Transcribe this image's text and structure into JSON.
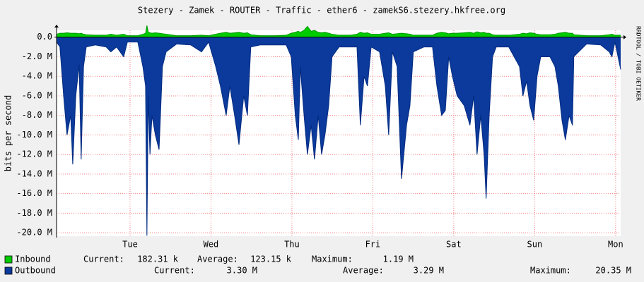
{
  "chart_data": {
    "type": "area",
    "title": "Stezery - Zamek - ROUTER - Traffic - ether6 - zamekS6.stezery.hkfree.org",
    "y_label": "bits per second",
    "watermark": "RRDTOOL / TOBI OETIKER",
    "x": [
      2.2,
      3.2,
      4.3,
      5.3,
      6.4,
      7.0,
      7.9,
      8.9,
      9.5,
      10.2,
      11.0,
      13.7,
      16.9,
      18.3,
      20.0,
      22.1,
      23.2,
      26.3,
      27.8,
      28.6,
      29.0,
      29.4,
      29.9,
      30.5,
      31.5,
      32.6,
      33.6,
      34.7,
      37.8,
      42.0,
      45.2,
      47.3,
      49.4,
      50.8,
      52.5,
      53.6,
      55.0,
      56.3,
      57.7,
      58.8,
      59.8,
      62.6,
      67.2,
      70.3,
      71.8,
      73.0,
      73.9,
      74.5,
      75.6,
      76.6,
      77.7,
      78.7,
      79.8,
      80.8,
      81.8,
      82.9,
      83.9,
      86.0,
      89.2,
      91.3,
      92.3,
      93.4,
      94.4,
      95.5,
      98.0,
      99.7,
      100.7,
      101.8,
      103.2,
      104.5,
      106.0,
      107.0,
      108.0,
      111.2,
      113.7,
      115.0,
      116.4,
      117.5,
      118.5,
      119.6,
      121.0,
      123.1,
      124.8,
      125.9,
      126.9,
      128.0,
      129.0,
      129.6,
      130.5,
      131.5,
      132.6,
      136.3,
      139.5,
      140.5,
      141.6,
      142.6,
      143.7,
      144.7,
      145.8,
      148.5,
      150.0,
      151.0,
      152.1,
      153.1,
      154.2,
      155.2,
      155.6,
      159.4,
      163.6,
      166.1,
      166.9,
      167.8,
      169.5
    ],
    "series": [
      {
        "name": "Inbound",
        "color": "#00cc00",
        "outline": "#009900",
        "stats": [
          "Current:",
          "182.31 k",
          "Average:",
          "123.15 k",
          "Maximum:",
          "1.19 M"
        ],
        "values": [
          300000,
          400000,
          400000,
          450000,
          400000,
          400000,
          400000,
          350000,
          400000,
          300000,
          250000,
          200000,
          200000,
          300000,
          200000,
          300000,
          150000,
          150000,
          300000,
          400000,
          1190000,
          500000,
          450000,
          400000,
          450000,
          400000,
          350000,
          300000,
          150000,
          150000,
          200000,
          150000,
          300000,
          400000,
          500000,
          400000,
          450000,
          500000,
          400000,
          450000,
          250000,
          150000,
          150000,
          200000,
          400000,
          500000,
          600000,
          500000,
          700000,
          1100000,
          600000,
          700000,
          500000,
          450000,
          500000,
          400000,
          300000,
          200000,
          200000,
          300000,
          500000,
          400000,
          450000,
          300000,
          300000,
          400000,
          450000,
          300000,
          350000,
          400000,
          350000,
          300000,
          200000,
          200000,
          200000,
          400000,
          500000,
          450000,
          350000,
          400000,
          400000,
          450000,
          500000,
          400000,
          550000,
          450000,
          500000,
          400000,
          400000,
          250000,
          200000,
          200000,
          300000,
          400000,
          350000,
          450000,
          400000,
          300000,
          250000,
          250000,
          300000,
          400000,
          450000,
          500000,
          400000,
          400000,
          250000,
          150000,
          150000,
          250000,
          300000,
          200000,
          200000
        ]
      },
      {
        "name": "Outbound",
        "color": "#0b3a9c",
        "outline": "#002a80",
        "stats": [
          "Current:",
          "3.30 M",
          "Average:",
          "3.29 M",
          "Maximum:",
          "20.35 M"
        ],
        "values": [
          -500000,
          -1000000,
          -6000000,
          -10000000,
          -8000000,
          -13000000,
          -6000000,
          -2800000,
          -12500000,
          -3000000,
          -1000000,
          -800000,
          -1000000,
          -1500000,
          -1000000,
          -2000000,
          -500000,
          -500000,
          -3000000,
          -5000000,
          -20300000,
          -6000000,
          -12000000,
          -8000000,
          -10000000,
          -11500000,
          -3000000,
          -1500000,
          -700000,
          -800000,
          -1500000,
          -500000,
          -3000000,
          -5000000,
          -8000000,
          -5000000,
          -8000000,
          -11000000,
          -6000000,
          -8000000,
          -1000000,
          -800000,
          -800000,
          -800000,
          -2000000,
          -8000000,
          -10500000,
          -3000000,
          -8000000,
          -12000000,
          -9000000,
          -12500000,
          -8000000,
          -12000000,
          -10000000,
          -7000000,
          -2000000,
          -1000000,
          -1000000,
          -1000000,
          -9000000,
          -4000000,
          -5000000,
          -1000000,
          -1500000,
          -5000000,
          -10000000,
          -1500000,
          -3000000,
          -14500000,
          -9000000,
          -7000000,
          -1500000,
          -1000000,
          -1000000,
          -5000000,
          -8000000,
          -7500000,
          -2000000,
          -4000000,
          -6000000,
          -7000000,
          -9000000,
          -6000000,
          -12000000,
          -8000000,
          -12000000,
          -16500000,
          -8000000,
          -2000000,
          -1000000,
          -1000000,
          -3000000,
          -6000000,
          -4500000,
          -7000000,
          -8500000,
          -4000000,
          -2000000,
          -2000000,
          -3000000,
          -5000000,
          -8500000,
          -10500000,
          -8000000,
          -9000000,
          -2000000,
          -700000,
          -800000,
          -1500000,
          -2000000,
          -500000,
          -3300000
        ]
      }
    ],
    "xlim": [
      2.2,
      169.5
    ],
    "xticks": [
      {
        "value": 24,
        "label": "Tue"
      },
      {
        "value": 48,
        "label": "Wed"
      },
      {
        "value": 72,
        "label": "Thu"
      },
      {
        "value": 96,
        "label": "Fri"
      },
      {
        "value": 120,
        "label": "Sat"
      },
      {
        "value": 144,
        "label": "Sun"
      },
      {
        "value": 168,
        "label": "Mon"
      }
    ],
    "ylim": [
      -20350000,
      700000
    ],
    "yticks": [
      {
        "value": 0,
        "label": "0.0"
      },
      {
        "value": -2000000,
        "label": "-2.0 M"
      },
      {
        "value": -4000000,
        "label": "-4.0 M"
      },
      {
        "value": -6000000,
        "label": "-6.0 M"
      },
      {
        "value": -8000000,
        "label": "-8.0 M"
      },
      {
        "value": -10000000,
        "label": "-10.0 M"
      },
      {
        "value": -12000000,
        "label": "-12.0 M"
      },
      {
        "value": -14000000,
        "label": "-14.0 M"
      },
      {
        "value": -16000000,
        "label": "-16.0 M"
      },
      {
        "value": -18000000,
        "label": "-18.0 M"
      },
      {
        "value": -20000000,
        "label": "-20.0 M"
      }
    ],
    "grid": true,
    "background": "#f0f0f0"
  }
}
